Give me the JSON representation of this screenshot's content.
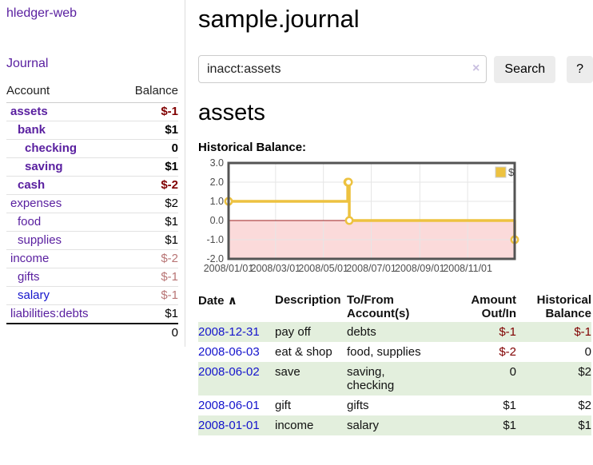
{
  "colors": {
    "purple": "#5a20a0",
    "blue": "#1414cc",
    "negative": "#800000",
    "negative_soft": "#b87575",
    "row_green": "#e3efdd",
    "chart_yellow": "#edc240",
    "chart_pink": "#fbdada",
    "chart_border": "#545454",
    "chart_grid": "#e6e6e6",
    "chart_zero_line": "#9e1f1f"
  },
  "icons": {
    "clear_search": "×",
    "sort_ascending": "∧",
    "legend_swatch": "dollar-series-swatch"
  },
  "sidebar": {
    "brand": "hledger-web",
    "journal_link": "Journal",
    "accounts_table": {
      "headers": {
        "account": "Account",
        "balance": "Balance"
      },
      "rows": [
        {
          "name": "assets",
          "depth": 1,
          "bold": true,
          "balance": "$-1",
          "balance_style": "neg-strong"
        },
        {
          "name": "bank",
          "depth": 2,
          "bold": true,
          "balance": "$1",
          "balance_style": "pos"
        },
        {
          "name": "checking",
          "depth": 3,
          "bold": true,
          "balance": "0",
          "balance_style": "pos"
        },
        {
          "name": "saving",
          "depth": 3,
          "bold": true,
          "balance": "$1",
          "balance_style": "pos"
        },
        {
          "name": "cash",
          "depth": 2,
          "bold": true,
          "balance": "$-2",
          "balance_style": "neg-strong"
        },
        {
          "name": "expenses",
          "depth": 1,
          "bold": false,
          "balance": "$2",
          "balance_style": "pos"
        },
        {
          "name": "food",
          "depth": 2,
          "bold": false,
          "balance": "$1",
          "balance_style": "pos"
        },
        {
          "name": "supplies",
          "depth": 2,
          "bold": false,
          "balance": "$1",
          "balance_style": "pos"
        },
        {
          "name": "income",
          "depth": 1,
          "bold": false,
          "balance": "$-2",
          "balance_style": "neg-soft"
        },
        {
          "name": "gifts",
          "depth": 2,
          "bold": false,
          "balance": "$-1",
          "balance_style": "neg-soft"
        },
        {
          "name": "salary",
          "depth": 2,
          "bold": false,
          "balance": "$-1",
          "balance_style": "neg-soft",
          "link_color": "blue"
        },
        {
          "name": "liabilities:debts",
          "depth": 1,
          "bold": false,
          "balance": "$1",
          "balance_style": "pos"
        }
      ],
      "total": "0"
    }
  },
  "header": {
    "title": "sample.journal"
  },
  "search": {
    "query": "inacct:assets",
    "button": "Search",
    "help_button": "?"
  },
  "account_page": {
    "title": "assets",
    "chart_label": "Historical Balance:"
  },
  "chart_data": {
    "type": "line",
    "style": "step-after",
    "title": "Historical Balance",
    "legend": {
      "position": "top-right",
      "entries": [
        "$"
      ]
    },
    "series": [
      {
        "name": "$",
        "points": [
          {
            "date": "2008-01-01",
            "value": 1
          },
          {
            "date": "2008-06-01",
            "value": 2
          },
          {
            "date": "2008-06-02",
            "value": 2
          },
          {
            "date": "2008-06-03",
            "value": 0
          },
          {
            "date": "2008-12-31",
            "value": -1
          }
        ]
      }
    ],
    "ylim": [
      -2,
      3
    ],
    "y_ticks": [
      3,
      2,
      1,
      0,
      -1,
      -2
    ],
    "y_tick_labels": [
      "3.0",
      "2.0",
      "1.0",
      "0.0",
      "-1.0",
      "-2.0"
    ],
    "x_ticks": [
      "2008-01-01",
      "2008-03-01",
      "2008-05-01",
      "2008-07-01",
      "2008-09-01",
      "2008-11-01"
    ],
    "x_tick_labels": [
      "2008/01/01",
      "2008/03/01",
      "2008/05/01",
      "2008/07/01",
      "2008/09/01",
      "2008/11/01"
    ],
    "grid": true,
    "negative_region_shaded": true
  },
  "register_table": {
    "headers": {
      "date": "Date",
      "description": "Description",
      "tofrom": "To/From Account(s)",
      "amount": "Amount Out/In",
      "balance": "Historical Balance"
    },
    "rows": [
      {
        "date": "2008-12-31",
        "description": "pay off",
        "accounts": "debts",
        "amount": "$-1",
        "amount_neg": true,
        "balance": "$-1",
        "balance_neg": true
      },
      {
        "date": "2008-06-03",
        "description": "eat & shop",
        "accounts": "food, supplies",
        "amount": "$-2",
        "amount_neg": true,
        "balance": "0",
        "balance_neg": false
      },
      {
        "date": "2008-06-02",
        "description": "save",
        "accounts": "saving, checking",
        "amount": "0",
        "amount_neg": false,
        "balance": "$2",
        "balance_neg": false
      },
      {
        "date": "2008-06-01",
        "description": "gift",
        "accounts": "gifts",
        "amount": "$1",
        "amount_neg": false,
        "balance": "$2",
        "balance_neg": false
      },
      {
        "date": "2008-01-01",
        "description": "income",
        "accounts": "salary",
        "amount": "$1",
        "amount_neg": false,
        "balance": "$1",
        "balance_neg": false
      }
    ]
  }
}
